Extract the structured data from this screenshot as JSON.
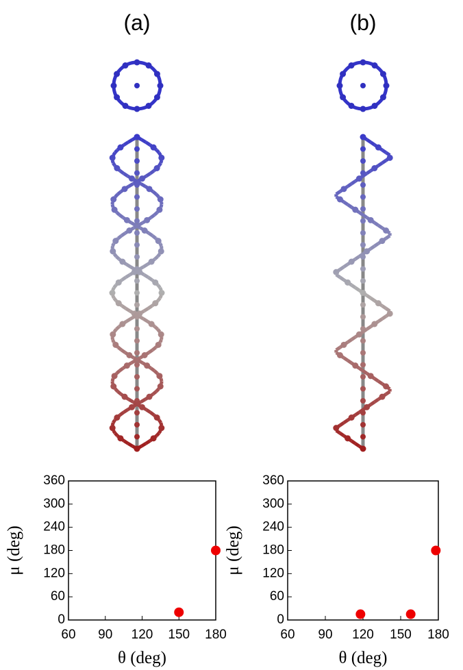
{
  "chart_data": [
    {
      "type": "scatter",
      "title": "(a)",
      "x_label": "θ (deg)",
      "y_label": "μ (deg)",
      "x": [
        180,
        150
      ],
      "y": [
        180,
        20
      ],
      "color": "#ee0000",
      "xlim": [
        60,
        180
      ],
      "xticks": [
        60,
        90,
        120,
        150,
        180
      ],
      "ylim": [
        0,
        360
      ],
      "yticks": [
        0,
        60,
        120,
        180,
        240,
        300,
        360
      ]
    },
    {
      "type": "scatter",
      "title": "(b)",
      "x_label": "θ (deg)",
      "y_label": "μ (deg)",
      "x": [
        118,
        158,
        178
      ],
      "y": [
        15,
        15,
        180
      ],
      "color": "#ee0000",
      "xlim": [
        60,
        180
      ],
      "xticks": [
        60,
        90,
        120,
        150,
        180
      ],
      "ylim": [
        0,
        360
      ],
      "yticks": [
        0,
        60,
        120,
        180,
        240,
        300,
        360
      ]
    }
  ]
}
